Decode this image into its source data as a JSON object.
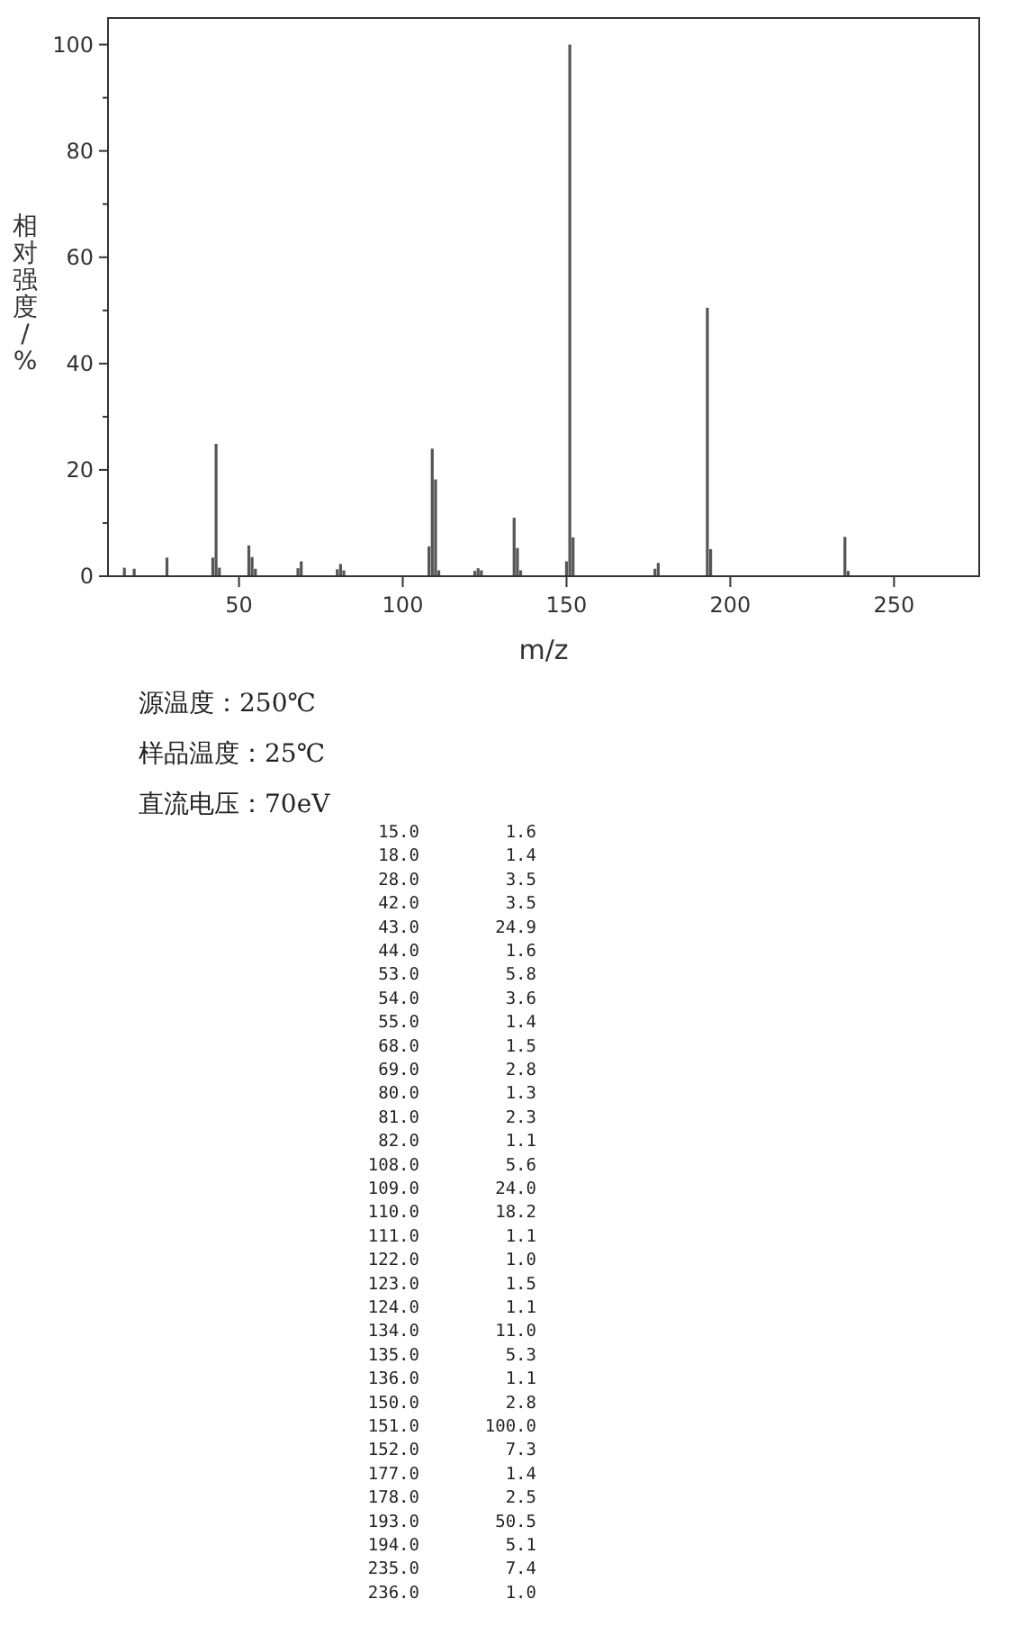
{
  "chart_data": {
    "type": "bar",
    "xlabel": "m/z",
    "ylabel": "相对强度/%",
    "color": "#555555",
    "x": [
      15,
      18,
      28,
      42,
      43,
      44,
      53,
      54,
      55,
      68,
      69,
      80,
      81,
      82,
      108,
      109,
      110,
      111,
      122,
      123,
      124,
      134,
      135,
      136,
      150,
      151,
      152,
      177,
      178,
      193,
      194,
      235,
      236
    ],
    "values": [
      1.6,
      1.4,
      3.5,
      3.5,
      24.9,
      1.6,
      5.8,
      3.6,
      1.4,
      1.5,
      2.8,
      1.3,
      2.3,
      1.1,
      5.6,
      24.0,
      18.2,
      1.1,
      1.0,
      1.5,
      1.1,
      11.0,
      5.3,
      1.1,
      2.8,
      100.0,
      7.3,
      1.4,
      2.5,
      50.5,
      5.1,
      7.4,
      1.0
    ],
    "xlim": [
      10,
      276
    ],
    "ylim": [
      0,
      105
    ],
    "xticks": [
      50,
      100,
      150,
      200,
      250
    ],
    "yticks": [
      0,
      {
        "value": 10,
        "label": null
      },
      20,
      {
        "value": 30,
        "label": null
      },
      40,
      {
        "value": 50,
        "label": null
      },
      60,
      {
        "value": 70,
        "label": null
      },
      80,
      {
        "value": 90,
        "label": null
      },
      100
    ],
    "annotations": [
      "源温度：250℃",
      "样品温度：25℃",
      "直流电压：70eV",
      "15.0 1.6",
      "18.0 1.4",
      "28.0 3.5",
      "42.0 3.5",
      "43.0 24.9",
      "44.0 1.6",
      "53.0 5.8",
      "54.0 3.6",
      "55.0 1.4",
      "68.0 1.5",
      "69.0 2.8",
      "80.0 1.3",
      "81.0 2.3",
      "82.0 1.1",
      "108.0 5.6",
      "109.0 24.0",
      "110.0 18.2",
      "111.0 1.1",
      "122.0 1.0",
      "123.0 1.5",
      "124.0 1.1",
      "134.0 11.0",
      "135.0 5.3",
      "136.0 1.1",
      "150.0 2.8",
      "151.0 100.0",
      "152.0 7.3",
      "177.0 1.4",
      "178.0 2.5",
      "193.0 50.5",
      "194.0 5.1",
      "235.0 7.4",
      "236.0 1.0"
    ]
  }
}
